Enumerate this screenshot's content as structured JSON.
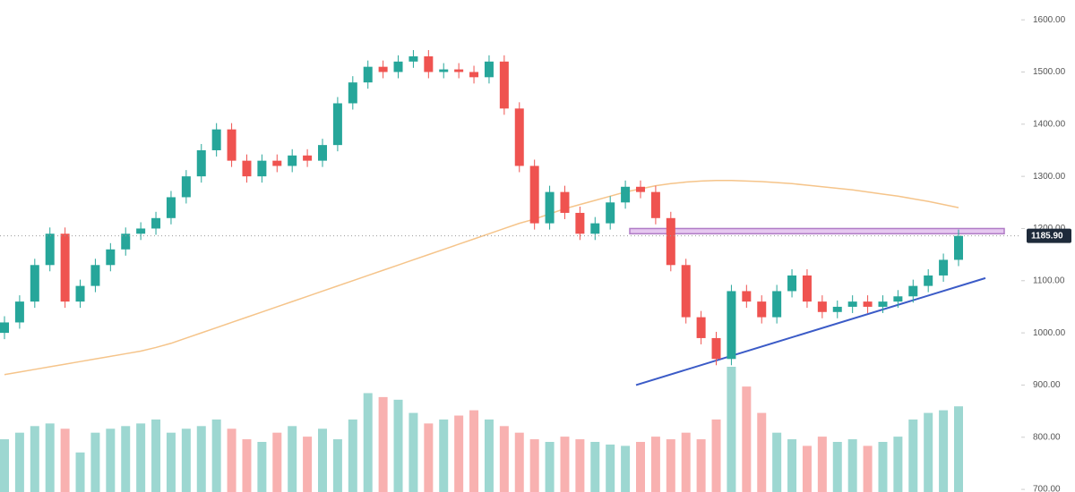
{
  "chart_data": {
    "type": "candlestick",
    "open": [
      1000,
      1020,
      1060,
      1130,
      1190,
      1060,
      1090,
      1130,
      1160,
      1190,
      1200,
      1220,
      1260,
      1300,
      1350,
      1390,
      1330,
      1300,
      1330,
      1320,
      1340,
      1330,
      1360,
      1440,
      1480,
      1510,
      1500,
      1520,
      1530,
      1500,
      1505,
      1500,
      1490,
      1520,
      1430,
      1320,
      1210,
      1270,
      1230,
      1190,
      1210,
      1250,
      1280,
      1270,
      1220,
      1130,
      1030,
      990,
      950,
      1080,
      1060,
      1030,
      1080,
      1110,
      1060,
      1040,
      1050,
      1060,
      1050,
      1060,
      1070,
      1090,
      1110,
      1140
    ],
    "high": [
      1032,
      1072,
      1142,
      1202,
      1202,
      1102,
      1142,
      1172,
      1202,
      1212,
      1232,
      1272,
      1312,
      1362,
      1402,
      1402,
      1342,
      1342,
      1342,
      1352,
      1352,
      1372,
      1452,
      1492,
      1522,
      1522,
      1532,
      1542,
      1542,
      1517,
      1517,
      1512,
      1532,
      1532,
      1442,
      1332,
      1282,
      1282,
      1242,
      1222,
      1262,
      1292,
      1292,
      1282,
      1232,
      1142,
      1042,
      1002,
      1092,
      1092,
      1072,
      1092,
      1122,
      1122,
      1072,
      1062,
      1072,
      1072,
      1072,
      1082,
      1102,
      1122,
      1152,
      1197.9
    ],
    "low": [
      988,
      1008,
      1048,
      1118,
      1048,
      1048,
      1078,
      1118,
      1148,
      1178,
      1188,
      1208,
      1248,
      1288,
      1338,
      1318,
      1288,
      1288,
      1308,
      1308,
      1318,
      1318,
      1348,
      1428,
      1468,
      1488,
      1488,
      1508,
      1488,
      1488,
      1488,
      1478,
      1478,
      1418,
      1308,
      1198,
      1198,
      1218,
      1178,
      1178,
      1198,
      1238,
      1258,
      1208,
      1118,
      1018,
      978,
      938,
      938,
      1048,
      1018,
      1018,
      1068,
      1048,
      1028,
      1028,
      1038,
      1038,
      1038,
      1048,
      1058,
      1078,
      1098,
      1128
    ],
    "close": [
      1020,
      1060,
      1130,
      1190,
      1060,
      1090,
      1130,
      1160,
      1190,
      1200,
      1220,
      1260,
      1300,
      1350,
      1390,
      1330,
      1300,
      1330,
      1320,
      1340,
      1330,
      1360,
      1440,
      1480,
      1510,
      1500,
      1520,
      1530,
      1500,
      1505,
      1500,
      1490,
      1520,
      1430,
      1320,
      1210,
      1270,
      1230,
      1190,
      1210,
      1250,
      1280,
      1270,
      1220,
      1130,
      1030,
      990,
      950,
      1080,
      1060,
      1030,
      1080,
      1110,
      1060,
      1040,
      1050,
      1060,
      1050,
      1060,
      1070,
      1090,
      1110,
      1140,
      1185.9
    ],
    "volume": [
      40,
      45,
      50,
      52,
      48,
      30,
      45,
      48,
      50,
      52,
      55,
      45,
      48,
      50,
      55,
      48,
      40,
      38,
      45,
      50,
      42,
      48,
      40,
      55,
      75,
      72,
      70,
      60,
      52,
      55,
      58,
      62,
      55,
      50,
      45,
      40,
      38,
      42,
      40,
      38,
      36,
      35,
      38,
      42,
      40,
      45,
      40,
      55,
      95,
      80,
      60,
      45,
      40,
      35,
      42,
      38,
      40,
      35,
      38,
      42,
      55,
      60,
      62,
      65
    ],
    "moving_average": {
      "color": "#f5c48a",
      "values": [
        920,
        925,
        930,
        935,
        940,
        945,
        950,
        955,
        960,
        965,
        972,
        980,
        990,
        1000,
        1010,
        1020,
        1030,
        1040,
        1050,
        1060,
        1070,
        1080,
        1090,
        1100,
        1110,
        1120,
        1130,
        1140,
        1150,
        1160,
        1170,
        1180,
        1190,
        1200,
        1210,
        1218,
        1228,
        1238,
        1246,
        1254,
        1262,
        1270,
        1276,
        1282,
        1286,
        1289,
        1291,
        1292,
        1292,
        1291,
        1290,
        1288,
        1286,
        1283,
        1280,
        1277,
        1274,
        1270,
        1266,
        1262,
        1257,
        1252,
        1246,
        1240
      ]
    },
    "up_color": "#26a69a",
    "down_color": "#ef5350",
    "ylim": [
      695,
      1638
    ],
    "yticks": [
      {
        "value": 700,
        "label": "700.00"
      },
      {
        "value": 800,
        "label": "800.00"
      },
      {
        "value": 900,
        "label": "900.00"
      },
      {
        "value": 1000,
        "label": "1000.00"
      },
      {
        "value": 1100,
        "label": "1100.00"
      },
      {
        "value": 1200,
        "label": "1200.00"
      },
      {
        "value": 1300,
        "label": "1300.00"
      },
      {
        "value": 1400,
        "label": "1400.00"
      },
      {
        "value": 1500,
        "label": "1500.00"
      },
      {
        "value": 1600,
        "label": "1600.00"
      }
    ],
    "last_price": {
      "value": 1185.9,
      "label": "1185.90"
    },
    "resistance_zone": [
      1190,
      1200
    ],
    "support_line": [
      900,
      1105
    ]
  }
}
